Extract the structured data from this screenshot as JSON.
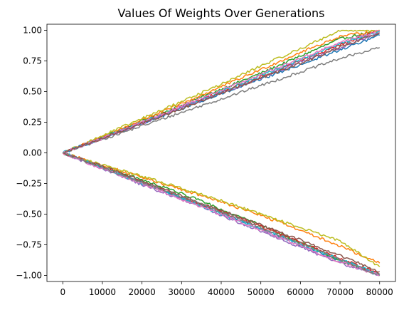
{
  "chart_data": {
    "type": "line",
    "title": "Values Of Weights Over Generations",
    "xlabel": "",
    "ylabel": "",
    "xlim": [
      -4000,
      84000
    ],
    "ylim": [
      -1.05,
      1.05
    ],
    "grid": false,
    "legend": "none",
    "x_ticks": [
      0,
      10000,
      20000,
      30000,
      40000,
      50000,
      60000,
      70000,
      80000
    ],
    "x_tick_labels": [
      "0",
      "10000",
      "20000",
      "30000",
      "40000",
      "50000",
      "60000",
      "70000",
      "80000"
    ],
    "y_ticks": [
      1.0,
      0.75,
      0.5,
      0.25,
      0.0,
      -0.25,
      -0.5,
      -0.75,
      -1.0
    ],
    "y_tick_labels": [
      "1.00",
      "0.75",
      "0.50",
      "0.25",
      "0.00",
      "−0.25",
      "−0.50",
      "−0.75",
      "−1.00"
    ],
    "x": [
      0,
      10000,
      20000,
      30000,
      40000,
      50000,
      60000,
      70000,
      80000
    ],
    "series": [
      {
        "color": "#2ca02c",
        "values": [
          0,
          0.13,
          0.26,
          0.39,
          0.52,
          0.65,
          0.79,
          0.93,
          1.0
        ]
      },
      {
        "color": "#7f7f7f",
        "values": [
          0,
          0.11,
          0.22,
          0.33,
          0.44,
          0.55,
          0.66,
          0.77,
          0.86
        ]
      },
      {
        "color": "#ff7f0e",
        "values": [
          0,
          0.13,
          0.27,
          0.4,
          0.54,
          0.68,
          0.82,
          0.95,
          1.0
        ]
      },
      {
        "color": "#d62728",
        "values": [
          0,
          0.12,
          0.25,
          0.37,
          0.5,
          0.62,
          0.75,
          0.88,
          1.0
        ]
      },
      {
        "color": "#1f77b4",
        "values": [
          0,
          0.12,
          0.24,
          0.36,
          0.48,
          0.6,
          0.72,
          0.84,
          0.96
        ]
      },
      {
        "color": "#bcbd22",
        "values": [
          0,
          0.14,
          0.28,
          0.42,
          0.56,
          0.71,
          0.85,
          1.0,
          1.0
        ]
      },
      {
        "color": "#17becf",
        "values": [
          0,
          0.12,
          0.25,
          0.37,
          0.5,
          0.63,
          0.76,
          0.89,
          0.99
        ]
      },
      {
        "color": "#9467bd",
        "values": [
          0,
          0.12,
          0.24,
          0.37,
          0.49,
          0.61,
          0.74,
          0.86,
          0.98
        ]
      },
      {
        "color": "#e377c2",
        "values": [
          0,
          0.12,
          0.25,
          0.38,
          0.51,
          0.64,
          0.77,
          0.9,
          1.0
        ]
      },
      {
        "color": "#8c564b",
        "values": [
          0,
          0.12,
          0.24,
          0.36,
          0.49,
          0.61,
          0.73,
          0.86,
          0.98
        ]
      },
      {
        "color": "#1f77b4",
        "values": [
          0,
          -0.12,
          -0.24,
          -0.37,
          -0.49,
          -0.62,
          -0.75,
          -0.88,
          -1.0
        ]
      },
      {
        "color": "#2ca02c",
        "values": [
          0,
          -0.11,
          -0.22,
          -0.33,
          -0.46,
          -0.59,
          -0.73,
          -0.88,
          -1.0
        ]
      },
      {
        "color": "#ff7f0e",
        "values": [
          0,
          -0.1,
          -0.2,
          -0.3,
          -0.4,
          -0.51,
          -0.63,
          -0.76,
          -0.9
        ]
      },
      {
        "color": "#bcbd22",
        "values": [
          0,
          -0.1,
          -0.19,
          -0.29,
          -0.39,
          -0.5,
          -0.61,
          -0.72,
          -0.93
        ]
      },
      {
        "color": "#d62728",
        "values": [
          0,
          -0.12,
          -0.24,
          -0.36,
          -0.48,
          -0.6,
          -0.73,
          -0.86,
          -0.99
        ]
      },
      {
        "color": "#9467bd",
        "values": [
          0,
          -0.13,
          -0.26,
          -0.38,
          -0.51,
          -0.64,
          -0.77,
          -0.9,
          -1.0
        ]
      },
      {
        "color": "#17becf",
        "values": [
          0,
          -0.12,
          -0.25,
          -0.37,
          -0.5,
          -0.62,
          -0.75,
          -0.87,
          -0.99
        ]
      },
      {
        "color": "#e377c2",
        "values": [
          0,
          -0.13,
          -0.25,
          -0.38,
          -0.5,
          -0.63,
          -0.76,
          -0.89,
          -1.0
        ]
      },
      {
        "color": "#8c564b",
        "values": [
          0,
          -0.11,
          -0.23,
          -0.35,
          -0.47,
          -0.59,
          -0.71,
          -0.84,
          -0.97
        ]
      },
      {
        "color": "#7f7f7f",
        "values": [
          0,
          -0.12,
          -0.24,
          -0.36,
          -0.48,
          -0.61,
          -0.74,
          -0.87,
          -1.0
        ]
      }
    ]
  }
}
